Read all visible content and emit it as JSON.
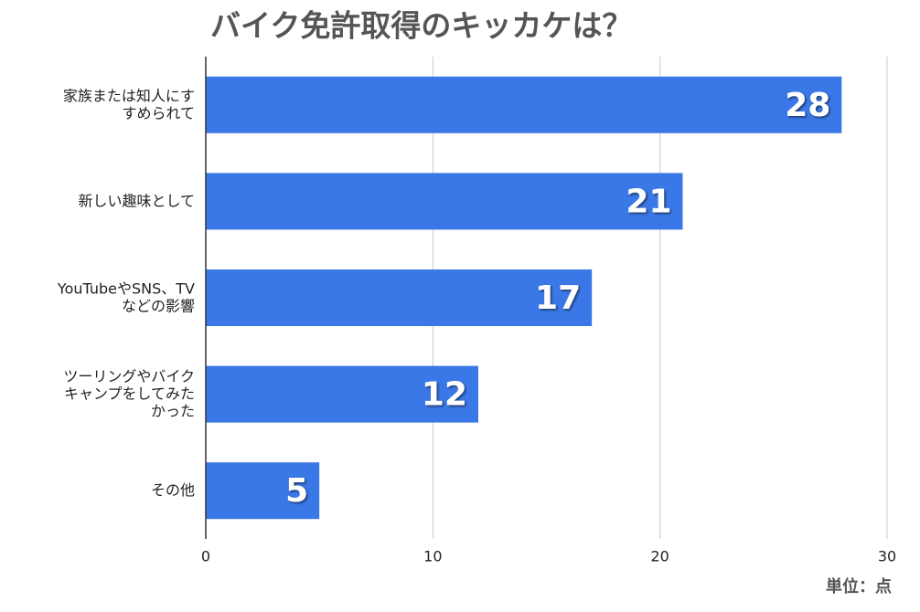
{
  "chart_data": {
    "type": "bar",
    "orientation": "horizontal",
    "title": "バイク免許取得のキッカケは？",
    "categories": [
      "家族または知人にす\nすめられて",
      "新しい趣味として",
      "YouTubeやSNS、TV\nなどの影響",
      "ツーリングやバイク\nキャンプをしてみた\nかった",
      "その他"
    ],
    "values": [
      28,
      21,
      17,
      12,
      5
    ],
    "color": "#3b78e7",
    "xlim": [
      0,
      30
    ],
    "xticks": [
      0,
      10,
      20,
      30
    ],
    "grid": true,
    "unit_note": "単位：点"
  }
}
